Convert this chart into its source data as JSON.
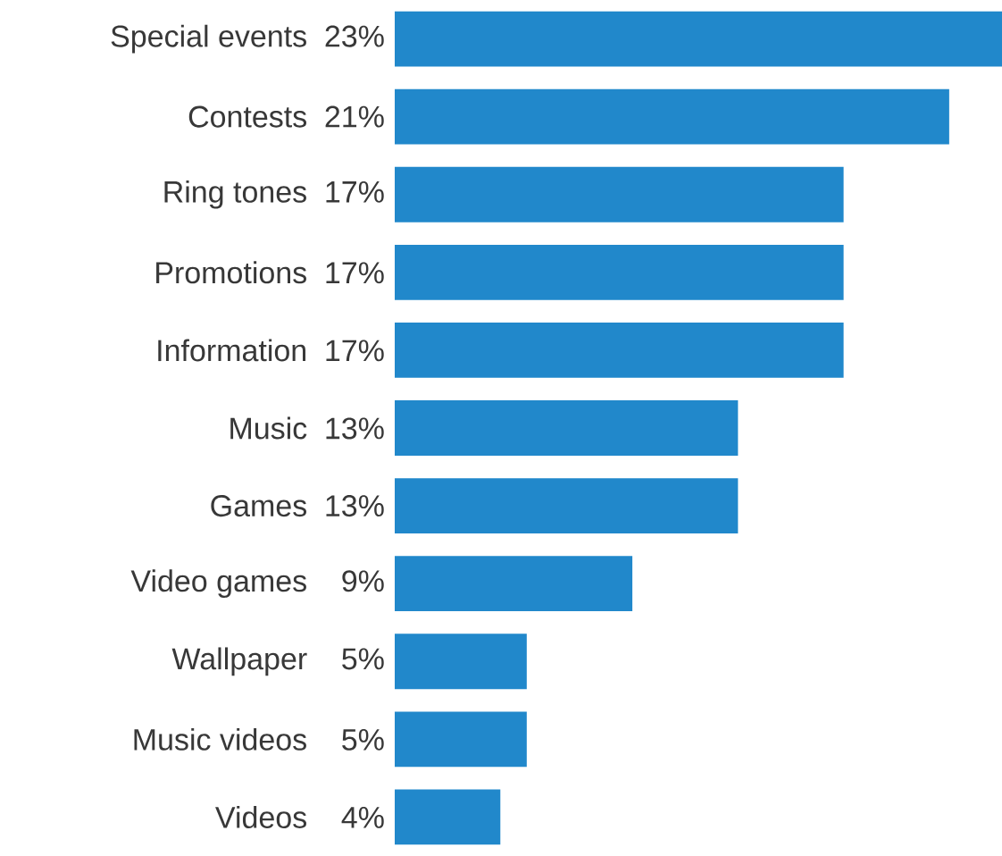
{
  "chart_data": {
    "type": "bar",
    "orientation": "horizontal",
    "categories": [
      "Special events",
      "Contests",
      "Ring tones",
      "Promotions",
      "Information",
      "Music",
      "Games",
      "Video games",
      "Wallpaper",
      "Music videos",
      "Videos"
    ],
    "values": [
      23,
      21,
      17,
      17,
      17,
      13,
      13,
      9,
      5,
      5,
      4
    ],
    "value_labels": [
      "23%",
      "21%",
      "17%",
      "17%",
      "17%",
      "13%",
      "13%",
      "9%",
      "5%",
      "5%",
      "4%"
    ],
    "color": "#2188cb"
  }
}
